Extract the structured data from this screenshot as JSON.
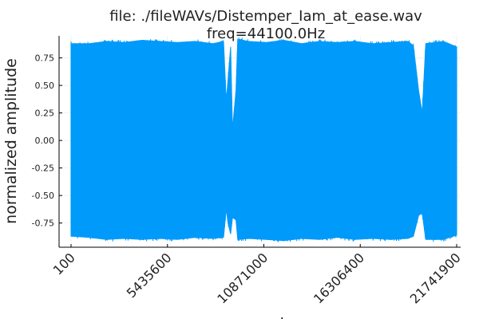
{
  "chart_data": {
    "type": "area",
    "title_line1": "file: ./fileWAVs/Distemper_Iam_at_ease.wav",
    "title_line2": "freq=44100.0Hz",
    "xlabel": "sample",
    "ylabel": "normalized amplitude",
    "xlim": [
      100,
      21741900
    ],
    "ylim": [
      -0.97,
      0.95
    ],
    "x_ticks": [
      100,
      5435600,
      10871000,
      16306400,
      21741900
    ],
    "x_tick_labels": [
      "100",
      "5435600",
      "10871000",
      "16306400",
      "21741900"
    ],
    "y_ticks": [
      0.75,
      0.5,
      0.25,
      0.0,
      -0.25,
      -0.5,
      -0.75
    ],
    "y_tick_labels": [
      "0.75",
      "0.50",
      "0.25",
      "0.00",
      "-0.25",
      "-0.50",
      "-0.75"
    ],
    "grid": true,
    "series": [
      {
        "color": "#009AFA",
        "x": [
          100,
          1000000,
          2000000,
          3000000,
          4000000,
          5000000,
          6000000,
          7000000,
          8000000,
          8600000,
          8750000,
          8850000,
          9000000,
          9100000,
          9300000,
          9400000,
          10000000,
          11000000,
          12000000,
          13000000,
          14000000,
          15000000,
          16000000,
          17000000,
          18000000,
          19000000,
          19300000,
          19600000,
          19800000,
          20000000,
          21000000,
          21741900
        ],
        "upper": [
          0.88,
          0.88,
          0.9,
          0.89,
          0.91,
          0.9,
          0.89,
          0.9,
          0.88,
          0.9,
          0.35,
          0.55,
          0.85,
          0.1,
          0.45,
          0.92,
          0.9,
          0.89,
          0.91,
          0.88,
          0.9,
          0.89,
          0.9,
          0.88,
          0.89,
          0.9,
          0.86,
          0.45,
          0.25,
          0.88,
          0.9,
          0.85
        ],
        "lower": [
          -0.87,
          -0.88,
          -0.9,
          -0.89,
          -0.9,
          -0.89,
          -0.9,
          -0.88,
          -0.89,
          -0.88,
          -0.62,
          -0.75,
          -0.85,
          -0.7,
          -0.72,
          -0.9,
          -0.89,
          -0.9,
          -0.91,
          -0.89,
          -0.9,
          -0.88,
          -0.9,
          -0.89,
          -0.9,
          -0.89,
          -0.87,
          -0.68,
          -0.66,
          -0.9,
          -0.9,
          -0.86
        ]
      }
    ]
  }
}
